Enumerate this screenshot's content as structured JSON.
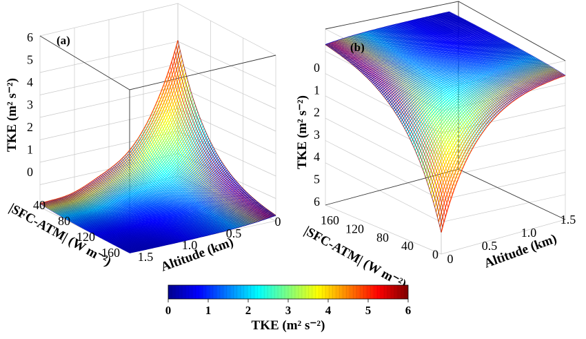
{
  "colorbar": {
    "label": "TKE (m² s⁻²)",
    "ticks": [
      "0",
      "1",
      "2",
      "3",
      "4",
      "5",
      "6"
    ],
    "range": [
      0,
      6
    ],
    "colormap": "jet",
    "colors": [
      "#00008f",
      "#0000ff",
      "#007fff",
      "#00ffff",
      "#7fff7f",
      "#ffff00",
      "#ff7f00",
      "#ff0000",
      "#7f0000"
    ]
  },
  "chart_data": [
    {
      "type": "surface",
      "panel_label": "(a)",
      "x_label": "Altitude (km)",
      "y_label": "|SFC-ATM| (W m⁻²)",
      "z_label": "TKE (m² s⁻²)",
      "x_ticks": [
        "0",
        "0.5",
        "1.0",
        "1.5"
      ],
      "y_ticks": [
        "40",
        "80",
        "120",
        "160"
      ],
      "z_ticks": [
        "0",
        "1",
        "2",
        "3",
        "4",
        "5",
        "6"
      ],
      "x_range": [
        0,
        1.5
      ],
      "y_range": [
        0,
        160
      ],
      "z_range": [
        -0.5,
        6
      ],
      "z_axis_reversed": false,
      "description_values": {
        "max_tke_at": {
          "altitude_km": 0,
          "sfc_atm": 0,
          "tke": 6.0
        },
        "tke_at_high_flux": 0.0,
        "tke_at_high_altitude": 0.0
      }
    },
    {
      "type": "surface",
      "panel_label": "(b)",
      "x_label": "Altitude (km)",
      "y_label": "|SFC-ATM| (W m⁻²)",
      "z_label": "TKE (m² s⁻²)",
      "x_ticks": [
        "0",
        "0.5",
        "1.0",
        "1.5"
      ],
      "y_ticks": [
        "0",
        "40",
        "80",
        "120",
        "160"
      ],
      "z_ticks": [
        "0",
        "1",
        "2",
        "3",
        "4",
        "5",
        "6"
      ],
      "x_range": [
        0,
        1.5
      ],
      "y_range": [
        0,
        160
      ],
      "z_range": [
        -0.5,
        6
      ],
      "z_axis_reversed": true,
      "description_values": {
        "max_tke_at": {
          "altitude_km": 0,
          "sfc_atm": 0,
          "tke": 6.0
        },
        "tke_at_high_flux": 0.0,
        "tke_at_high_altitude": 0.0
      }
    }
  ]
}
